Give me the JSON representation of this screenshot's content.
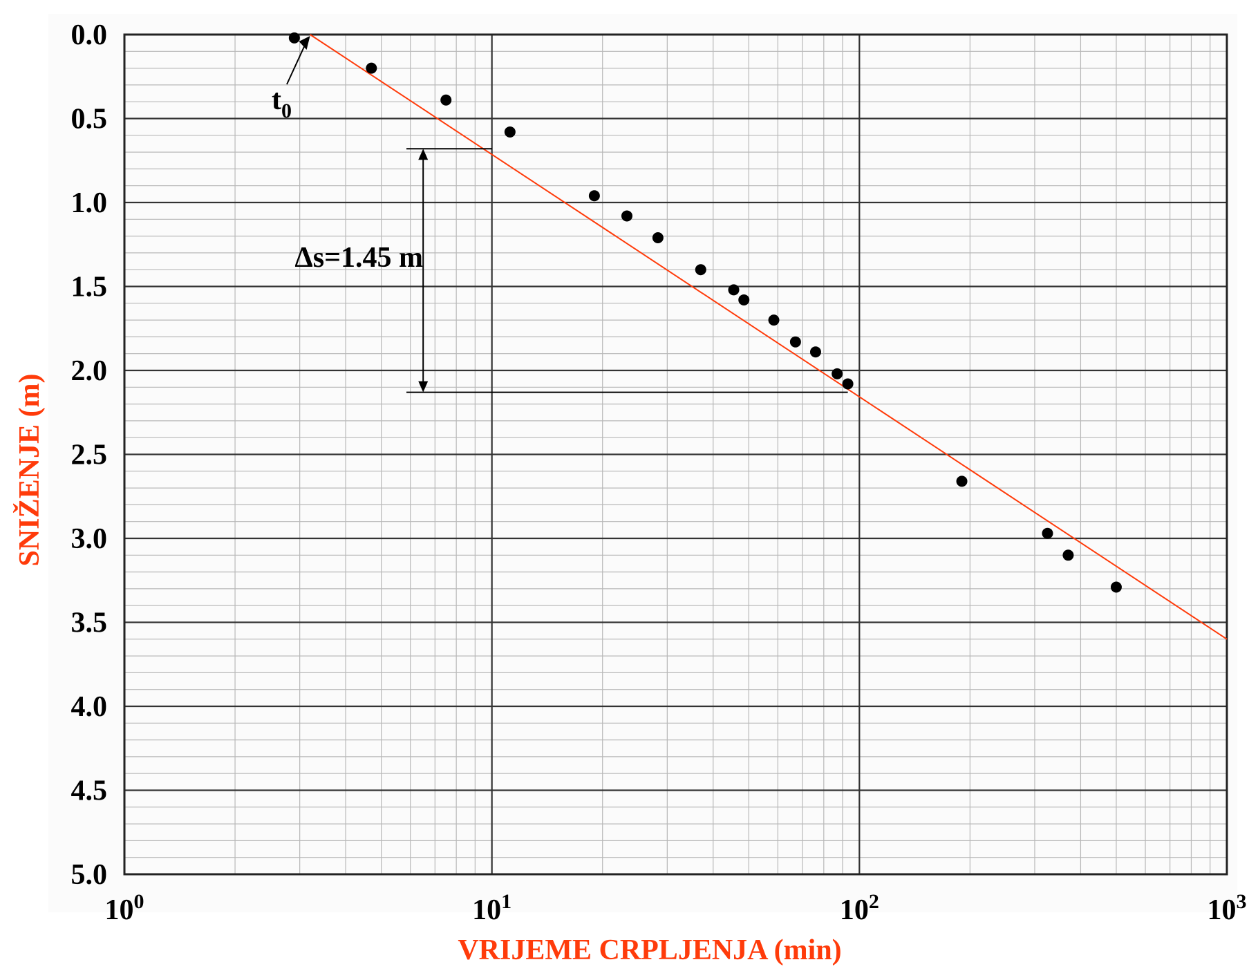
{
  "chart_data": {
    "type": "scatter",
    "xlabel": "VRIJEME CRPLJENJA (min)",
    "ylabel": "SNIŽENJE (m)",
    "x_scale": "log",
    "xlim": [
      1,
      1000
    ],
    "ylim": [
      0,
      5
    ],
    "y_inverted": true,
    "grid": true,
    "x_tick_labels": [
      {
        "base": "10",
        "exp": "0",
        "value": 1
      },
      {
        "base": "10",
        "exp": "1",
        "value": 10
      },
      {
        "base": "10",
        "exp": "2",
        "value": 100
      },
      {
        "base": "10",
        "exp": "3",
        "value": 1000
      }
    ],
    "y_tick_labels": [
      "0.0",
      "0.5",
      "1.0",
      "1.5",
      "2.0",
      "2.5",
      "3.0",
      "3.5",
      "4.0",
      "4.5",
      "5.0"
    ],
    "y_tick_values": [
      0,
      0.5,
      1,
      1.5,
      2,
      2.5,
      3,
      3.5,
      4,
      4.5,
      5
    ],
    "series": [
      {
        "x": [
          2.9,
          4.7,
          7.5,
          11.2,
          19.0,
          23.3,
          28.3,
          37.0,
          45.5,
          48.5,
          58.5,
          67.0,
          76.0,
          87.0,
          93.0,
          190,
          325,
          370,
          500
        ],
        "y": [
          0.02,
          0.2,
          0.39,
          0.58,
          0.96,
          1.08,
          1.21,
          1.4,
          1.52,
          1.58,
          1.7,
          1.83,
          1.89,
          2.02,
          2.08,
          2.66,
          2.97,
          3.1,
          3.29
        ]
      }
    ],
    "fit_line": {
      "x": [
        3.2,
        1000
      ],
      "y": [
        0.0,
        3.6
      ],
      "color": "#ff3b0a"
    },
    "annotations": {
      "t0": {
        "text": "t",
        "subscript": "0",
        "x": 3.2,
        "y": 0.0
      },
      "delta_s": {
        "text": "Δs=1.45 m",
        "x": 6.5,
        "y_top": 0.68,
        "y_bottom": 2.13
      }
    },
    "colors": {
      "points": "#000000",
      "grid": "#333333",
      "axis_title": "#ff3b0a",
      "fit_line": "#ff3b0a"
    }
  }
}
